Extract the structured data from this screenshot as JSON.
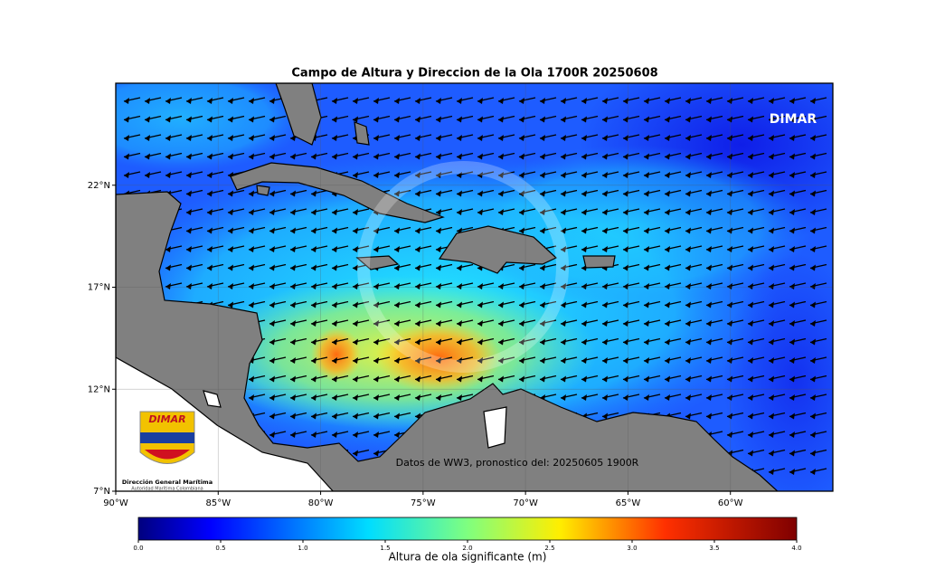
{
  "map": {
    "title": "Campo de Altura y Direccion de la Ola 1700R 20250608",
    "brand": "DIMAR",
    "annotation": "Datos de WW3, pronostico del: 20250605 1900R",
    "xlim": [
      -90,
      -55
    ],
    "ylim": [
      7,
      27
    ],
    "xticks": [
      {
        "value": -90,
        "label": "90°W"
      },
      {
        "value": -85,
        "label": "85°W"
      },
      {
        "value": -80,
        "label": "80°W"
      },
      {
        "value": -75,
        "label": "75°W"
      },
      {
        "value": -70,
        "label": "70°W"
      },
      {
        "value": -65,
        "label": "65°W"
      },
      {
        "value": -60,
        "label": "60°W"
      }
    ],
    "yticks": [
      {
        "value": 7,
        "label": "7°N"
      },
      {
        "value": 12,
        "label": "12°N"
      },
      {
        "value": 17,
        "label": "17°N"
      },
      {
        "value": 22,
        "label": "22°N"
      }
    ],
    "colorbar": {
      "label": "Altura de ola significante (m)",
      "lim": [
        0,
        4
      ],
      "ticks": [
        {
          "value": 0,
          "label": "0.0"
        },
        0.5,
        {
          "value": 1,
          "label": "1.0"
        },
        1.5,
        {
          "value": 2,
          "label": "2.0"
        },
        2.5,
        {
          "value": 3,
          "label": "3.0"
        },
        3.5,
        {
          "value": 4,
          "label": "4.0"
        }
      ]
    },
    "logo": {
      "wordmark": "DIMAR",
      "name": "Dirección General Marítima",
      "subtitle": "Autoridad Marítima Colombiana"
    }
  }
}
